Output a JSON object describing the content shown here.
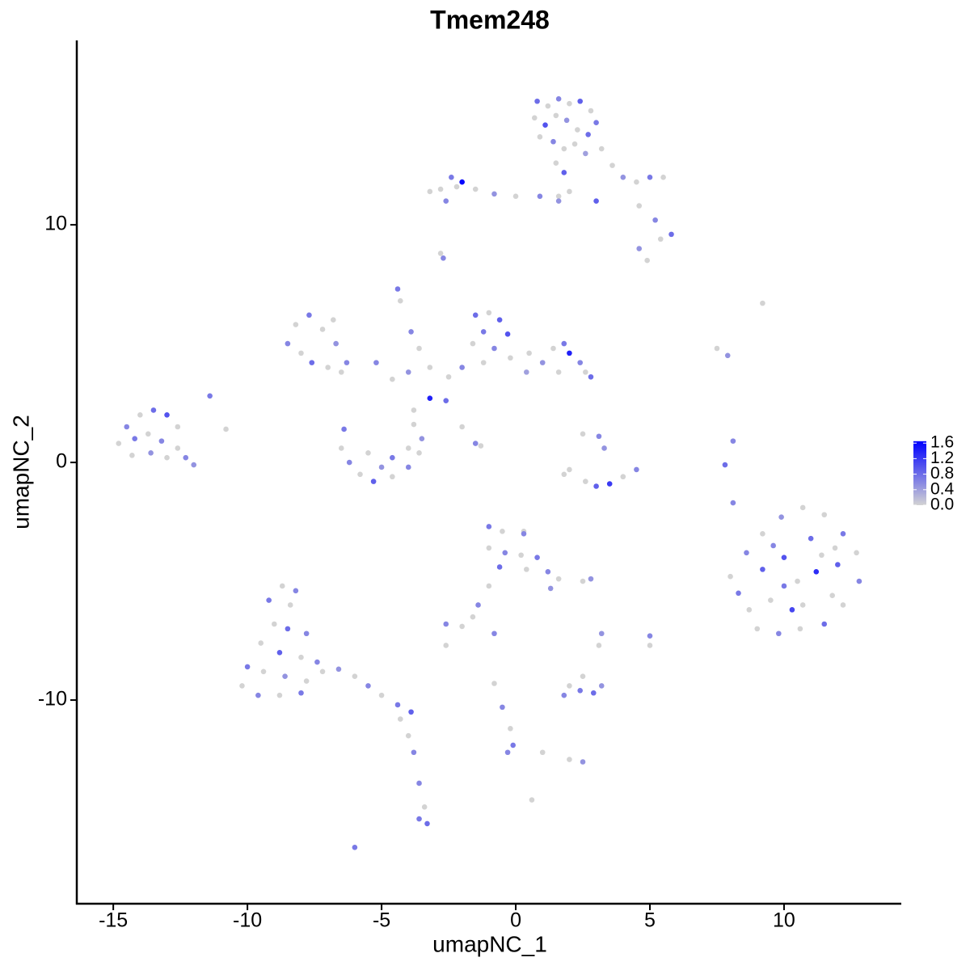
{
  "chart_data": {
    "type": "scatter",
    "title": "Tmem248",
    "x_label": "umapNC_1",
    "y_label": "umapNC_2",
    "xlim": [
      -16.36,
      14.37
    ],
    "ylim": [
      -18.57,
      17.76
    ],
    "xticks": [
      -15,
      -10,
      -5,
      0,
      5,
      10
    ],
    "yticks": [
      -10,
      0,
      10
    ],
    "color_low": "#d3d3d3",
    "color_high": "#0000ff",
    "colorlim": [
      0,
      1.65
    ],
    "colorticks": [
      {
        "value": 0,
        "label": "0.0"
      },
      {
        "value": 0.4,
        "label": "0.4"
      },
      {
        "value": 0.8,
        "label": "0.8"
      },
      {
        "value": 1.2,
        "label": "1.2"
      },
      {
        "value": 1.6,
        "label": "1.6"
      }
    ],
    "x": [
      0.8,
      1.2,
      1.6,
      2.0,
      2.4,
      2.8,
      3.0,
      0.7,
      1.1,
      1.5,
      1.9,
      2.3,
      2.7,
      0.9,
      1.4,
      1.8,
      2.2,
      2.6,
      3.2,
      1.5,
      1.8,
      3.6,
      4.0,
      4.5,
      5.0,
      5.5,
      4.6,
      5.2,
      5.8,
      5.4,
      4.6,
      4.9,
      3.0,
      1.6,
      0.9,
      0,
      -0.8,
      -1.5,
      -2.0,
      -2.4,
      -2.8,
      -3.2,
      -2.6,
      -2.2,
      1.6,
      2.0,
      -2.7,
      -2.8,
      -4.4,
      -4.3,
      -3.9,
      -3.6,
      -1.5,
      -1.0,
      -0.6,
      -0.3,
      -1.2,
      -1.6,
      -0.8,
      -0.2,
      0.5,
      1.0,
      1.4,
      1.8,
      2.0,
      2.4,
      2.6,
      2.8,
      1.6,
      0.4,
      -1.2,
      -2.0,
      -2.5,
      -3.2,
      -4.0,
      -4.6,
      -5.2,
      -2.6,
      -3.2,
      -3.8,
      -2.0,
      -1.5,
      -1.3,
      -7.7,
      -8.2,
      -8.5,
      -8.0,
      -7.6,
      -7.0,
      -6.5,
      -7.2,
      -6.7,
      -6.3,
      -6.8,
      -6.4,
      -6.5,
      -6.2,
      -5.8,
      -5.3,
      -4.6,
      -4.0,
      -3.6,
      -3.5,
      -4.0,
      -5.0,
      -5.5,
      -4.6,
      -3.8,
      -14.5,
      -14.0,
      -13.5,
      -13.0,
      -12.6,
      -14.8,
      -14.2,
      -13.7,
      -13.2,
      -12.6,
      -12.3,
      -13.0,
      -13.6,
      -14.3,
      -12.0,
      -11.4,
      -10.8,
      2.5,
      3.1,
      3.3,
      2.0,
      2.6,
      3.0,
      3.5,
      4.0,
      4.5,
      1.8,
      9.2,
      7.5,
      7.9,
      8.1,
      7.8,
      8.1,
      8.0,
      8.3,
      8.7,
      9.0,
      9.8,
      10.6,
      11.5,
      12.2,
      12.8,
      12.7,
      12.2,
      11.5,
      10.7,
      9.9,
      9.2,
      8.6,
      9.2,
      9.5,
      10.0,
      10.5,
      11.0,
      11.2,
      11.8,
      10.3,
      11.4,
      9.6,
      12.0,
      10.7,
      10.0,
      11.9,
      -8.7,
      -8.2,
      -9.2,
      -8.4,
      -9.0,
      -8.5,
      -7.8,
      -9.5,
      -8.8,
      -8.0,
      -7.4,
      -10.0,
      -9.4,
      -8.6,
      -7.8,
      -10.2,
      -9.6,
      -8.8,
      -8.0,
      -7.2,
      -6.6,
      -6.0,
      -5.5,
      -5.0,
      -4.4,
      -3.9,
      -4.3,
      -4.0,
      -3.8,
      -3.6,
      -3.4,
      -3.6,
      -3.3,
      -6.0,
      -1.0,
      -0.5,
      0.3,
      0.3,
      -1.0,
      -0.4,
      0.2,
      0.8,
      -0.6,
      0.4,
      1.2,
      1.6,
      1.3,
      -1.0,
      -1.4,
      -1.6,
      2.8,
      2.5,
      -2.6,
      -2.0,
      -2.6,
      -0.8,
      2.0,
      2.4,
      2.9,
      3.2,
      1.8,
      2.5,
      -0.8,
      -0.5,
      -0.2,
      -0.1,
      -0.3,
      2.5,
      2.0,
      1.0,
      0.6,
      5.0,
      5.0,
      3.2,
      3.1
    ],
    "y": [
      15.2,
      15.0,
      15.3,
      15.1,
      15.2,
      14.8,
      14.3,
      14.5,
      14.2,
      14.6,
      14.4,
      14.0,
      13.8,
      13.7,
      13.5,
      13.2,
      13.4,
      13.0,
      13.2,
      12.6,
      12.2,
      12.5,
      12.0,
      11.8,
      12.0,
      12.0,
      10.8,
      10.2,
      9.6,
      9.4,
      9.0,
      8.5,
      11.0,
      11.2,
      11.2,
      11.2,
      11.3,
      11.5,
      11.8,
      12.0,
      11.5,
      11.4,
      11.0,
      11.6,
      11.0,
      11.4,
      8.6,
      8.8,
      7.3,
      6.8,
      5.5,
      4.8,
      6.2,
      6.3,
      6.0,
      5.4,
      5.5,
      5.0,
      4.8,
      4.4,
      4.6,
      4.2,
      4.8,
      5.0,
      4.6,
      4.2,
      3.8,
      3.6,
      3.8,
      3.8,
      4.2,
      4.0,
      3.6,
      4.0,
      3.8,
      3.5,
      4.2,
      2.6,
      2.7,
      2.2,
      1.5,
      0.8,
      0.7,
      6.2,
      5.8,
      5.0,
      4.6,
      4.2,
      4.0,
      3.8,
      5.6,
      5.0,
      4.2,
      6.0,
      1.4,
      0.6,
      0,
      -0.5,
      -0.8,
      -0.6,
      -0.2,
      0.4,
      1.0,
      0.6,
      -0.2,
      0.4,
      0.2,
      1.6,
      1.5,
      2.0,
      2.2,
      2.0,
      1.5,
      0.8,
      1.0,
      1.2,
      0.9,
      0.6,
      0.2,
      0.2,
      0.4,
      0.3,
      -0.1,
      2.8,
      1.4,
      1.2,
      1.1,
      0.6,
      -0.3,
      -0.8,
      -1.0,
      -0.9,
      -0.6,
      -0.3,
      -0.5,
      6.7,
      4.8,
      4.5,
      0.9,
      -0.1,
      -1.7,
      -4.8,
      -5.5,
      -6.2,
      -7.0,
      -7.2,
      -7.0,
      -6.8,
      -6.0,
      -5.0,
      -3.8,
      -3.0,
      -2.2,
      -1.9,
      -2.3,
      -3.0,
      -3.8,
      -4.5,
      -5.8,
      -4.0,
      -5.0,
      -3.2,
      -4.6,
      -5.6,
      -6.2,
      -3.9,
      -3.5,
      -4.3,
      -6.0,
      -5.2,
      -3.6,
      -5.2,
      -5.4,
      -5.8,
      -6.0,
      -6.8,
      -7.0,
      -7.2,
      -7.6,
      -8.0,
      -8.2,
      -8.4,
      -8.6,
      -8.8,
      -9.0,
      -9.2,
      -9.4,
      -9.8,
      -9.8,
      -9.7,
      -8.8,
      -8.7,
      -9.0,
      -9.4,
      -9.8,
      -10.2,
      -10.5,
      -10.8,
      -11.5,
      -12.2,
      -13.5,
      -14.5,
      -15.0,
      -15.2,
      -16.2,
      -2.7,
      -2.9,
      -3.0,
      -2.9,
      -3.6,
      -3.8,
      -3.9,
      -4.0,
      -4.4,
      -4.5,
      -4.6,
      -4.9,
      -5.3,
      -5.2,
      -6.0,
      -6.5,
      -4.9,
      -5.0,
      -6.8,
      -6.9,
      -7.7,
      -7.2,
      -9.4,
      -9.6,
      -9.7,
      -9.4,
      -9.8,
      -9.0,
      -9.3,
      -10.3,
      -11.2,
      -11.9,
      -12.2,
      -12.6,
      -12.5,
      -12.2,
      -14.2,
      -7.3,
      -7.7,
      -7.2,
      -7.7
    ],
    "values": [
      0.8,
      0,
      0.6,
      0,
      0.9,
      0,
      0.7,
      0,
      1.0,
      0,
      0.5,
      0,
      0.8,
      0,
      0.6,
      0,
      0,
      0.4,
      0,
      0,
      0.9,
      0,
      0.5,
      0,
      0.7,
      0,
      0,
      0.6,
      0.8,
      0,
      0.5,
      0,
      0.9,
      0,
      0.6,
      0,
      0.5,
      0,
      1.6,
      0.7,
      0,
      0,
      0.6,
      0,
      0.5,
      0,
      0.6,
      0,
      0.7,
      0,
      0.6,
      0,
      0.8,
      0,
      0.9,
      1.0,
      0.7,
      0,
      0.6,
      0,
      0,
      0.5,
      0,
      0.7,
      1.4,
      0.6,
      0,
      0.8,
      0,
      0.4,
      0,
      0.6,
      0,
      0,
      0.5,
      0,
      0.6,
      0.8,
      1.4,
      0,
      0,
      0.6,
      0,
      0.7,
      0,
      0.6,
      0,
      0.8,
      0,
      0,
      0,
      0.5,
      0.6,
      0,
      0.7,
      0,
      0.6,
      0,
      0.9,
      0,
      0.6,
      0,
      0.5,
      0,
      0.5,
      0,
      0.7,
      0,
      0.6,
      0,
      0.8,
      1.0,
      0,
      0,
      0.7,
      0,
      0.6,
      0,
      0.6,
      0,
      0.5,
      0,
      0.5,
      0.7,
      0,
      0,
      0.6,
      0.5,
      0,
      0,
      0.9,
      1.2,
      0,
      0.6,
      0,
      0,
      0,
      0.5,
      0.6,
      0.8,
      0.6,
      0,
      0.7,
      0,
      0,
      0.6,
      0,
      0.8,
      0,
      0.6,
      0,
      0.7,
      0,
      0,
      0.5,
      0,
      0.6,
      0.9,
      0,
      1.0,
      0,
      0.8,
      1.3,
      0,
      1.1,
      0,
      0.6,
      0.9,
      0,
      0.7,
      0,
      0,
      0.6,
      0.7,
      0,
      0,
      0.8,
      0.6,
      0,
      0.9,
      0,
      0.6,
      0.7,
      0,
      0.5,
      0,
      0,
      0.6,
      0,
      0.7,
      0,
      0.5,
      0,
      0.6,
      0,
      0.7,
      0.9,
      0,
      0,
      0.6,
      0.6,
      0,
      0.7,
      0.8,
      0.7,
      0.7,
      0,
      0.6,
      0,
      0,
      0.6,
      0,
      0.7,
      0.8,
      0,
      0.6,
      0,
      0.5,
      0,
      0.6,
      0,
      0.5,
      0,
      0.6,
      0,
      0,
      0.6,
      0,
      0.7,
      0.8,
      0.5,
      0.6,
      0,
      0,
      0.6,
      0,
      0.7,
      0.6,
      0.5,
      0,
      0,
      0,
      0.6,
      0,
      0.5,
      0
    ]
  }
}
